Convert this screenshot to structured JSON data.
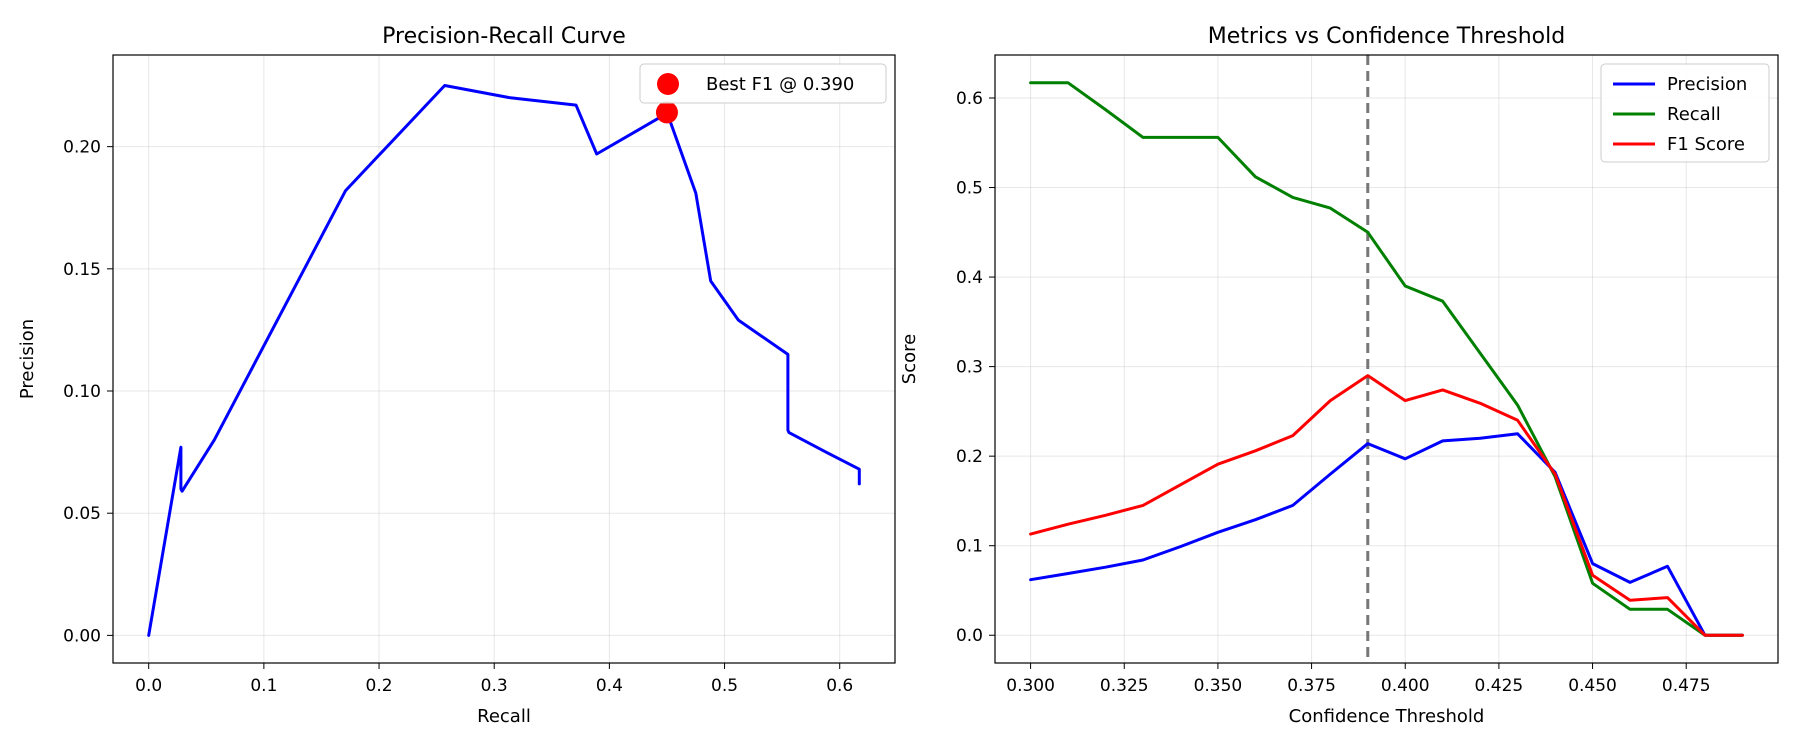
{
  "chart_data": [
    {
      "type": "line",
      "title": "Precision-Recall Curve",
      "xlabel": "Recall",
      "ylabel": "Precision",
      "xlim": [
        -0.031,
        0.648
      ],
      "ylim": [
        -0.0113,
        0.2375
      ],
      "xticks": [
        0.0,
        0.1,
        0.2,
        0.3,
        0.4,
        0.5,
        0.6
      ],
      "xtick_labels": [
        "0.0",
        "0.1",
        "0.2",
        "0.3",
        "0.4",
        "0.5",
        "0.6"
      ],
      "yticks": [
        0.0,
        0.05,
        0.1,
        0.15,
        0.2
      ],
      "ytick_labels": [
        "0.00",
        "0.05",
        "0.10",
        "0.15",
        "0.20"
      ],
      "grid": true,
      "legend": "top-right",
      "series": [
        {
          "color": "#0000ff",
          "x": [
            0.0,
            0.028,
            0.028,
            0.029,
            0.057,
            0.171,
            0.257,
            0.314,
            0.371,
            0.389,
            0.444,
            0.45,
            0.475,
            0.488,
            0.512,
            0.555,
            0.555,
            0.556,
            0.588,
            0.617,
            0.617
          ],
          "y": [
            0.0,
            0.077,
            0.06,
            0.059,
            0.08,
            0.182,
            0.225,
            0.22,
            0.217,
            0.197,
            0.212,
            0.214,
            0.181,
            0.145,
            0.129,
            0.115,
            0.084,
            0.083,
            0.075,
            0.068,
            0.062
          ]
        }
      ],
      "points": [
        {
          "name": "Best F1 @ 0.390",
          "x": 0.45,
          "y": 0.214,
          "color": "#ff0000"
        }
      ],
      "legend_marker": {
        "color": "#ff0000"
      }
    },
    {
      "type": "line",
      "title": "Metrics vs Confidence Threshold",
      "xlabel": "Confidence Threshold",
      "ylabel": "Score",
      "xlim": [
        0.2905,
        0.4995
      ],
      "ylim": [
        -0.031,
        0.648
      ],
      "xticks": [
        0.3,
        0.325,
        0.35,
        0.375,
        0.4,
        0.425,
        0.45,
        0.475
      ],
      "xtick_labels": [
        "0.300",
        "0.325",
        "0.350",
        "0.375",
        "0.400",
        "0.425",
        "0.450",
        "0.475"
      ],
      "yticks": [
        0.0,
        0.1,
        0.2,
        0.3,
        0.4,
        0.5,
        0.6
      ],
      "ytick_labels": [
        "0.0",
        "0.1",
        "0.2",
        "0.3",
        "0.4",
        "0.5",
        "0.6"
      ],
      "grid": true,
      "legend": "top-right",
      "vline": {
        "x": 0.39,
        "color": "#777777"
      },
      "x": [
        0.3,
        0.31,
        0.32,
        0.33,
        0.34,
        0.35,
        0.36,
        0.37,
        0.38,
        0.39,
        0.4,
        0.41,
        0.42,
        0.43,
        0.44,
        0.45,
        0.46,
        0.47,
        0.48,
        0.49
      ],
      "series": [
        {
          "name": "Precision",
          "color": "#0000ff",
          "values": [
            0.062,
            0.069,
            0.076,
            0.084,
            0.099,
            0.115,
            0.129,
            0.145,
            0.18,
            0.214,
            0.197,
            0.217,
            0.22,
            0.225,
            0.182,
            0.08,
            0.059,
            0.077,
            0.0,
            0.0
          ]
        },
        {
          "name": "Recall",
          "color": "#008000",
          "values": [
            0.617,
            0.617,
            0.587,
            0.556,
            0.556,
            0.556,
            0.512,
            0.489,
            0.477,
            0.45,
            0.39,
            0.373,
            0.315,
            0.257,
            0.177,
            0.058,
            0.029,
            0.029,
            0.0,
            0.0
          ]
        },
        {
          "name": "F1 Score",
          "color": "#ff0000",
          "values": [
            0.113,
            0.124,
            0.134,
            0.145,
            0.168,
            0.191,
            0.206,
            0.223,
            0.262,
            0.29,
            0.262,
            0.274,
            0.259,
            0.24,
            0.18,
            0.067,
            0.039,
            0.042,
            0.0,
            0.0
          ]
        }
      ]
    }
  ]
}
